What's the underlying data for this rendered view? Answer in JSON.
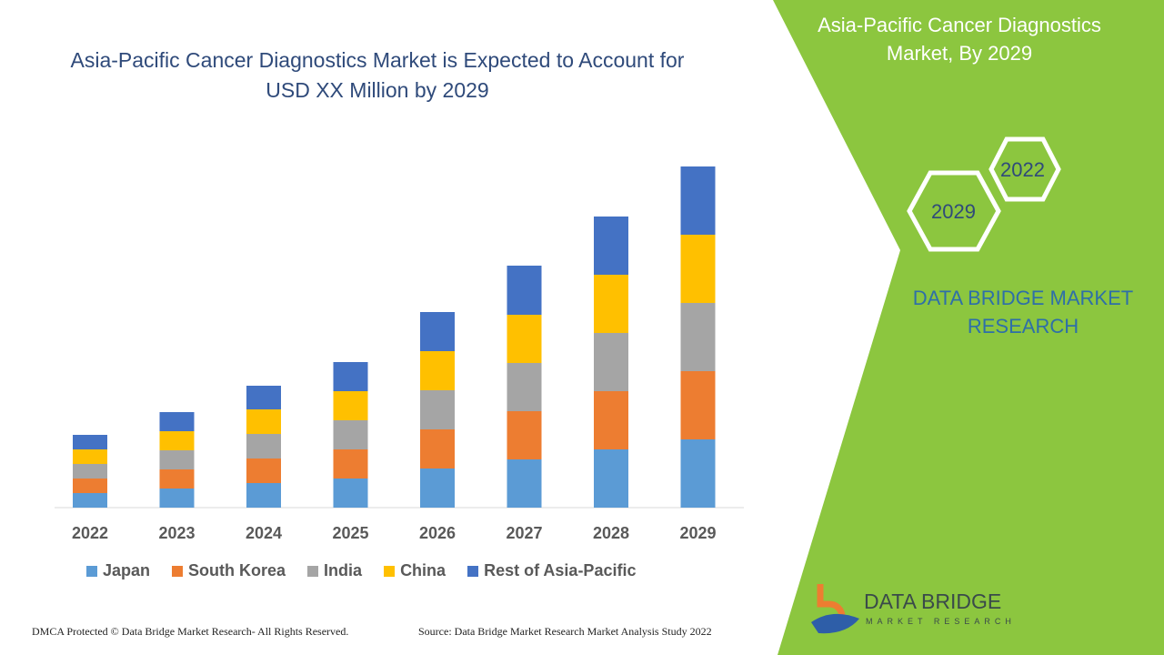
{
  "title": "Asia-Pacific Cancer Diagnostics Market is Expected to Account for USD XX Million by 2029",
  "side_panel": {
    "title": "Asia-Pacific Cancer Diagnostics Market, By 2029",
    "hex_labels": [
      "2022",
      "2029"
    ],
    "brand": "DATA BRIDGE MARKET RESEARCH",
    "green": "#8cc63f"
  },
  "footer": {
    "left": "DMCA Protected © Data Bridge Market Research- All Rights Reserved.",
    "right": "Source: Data Bridge Market Research Market Analysis Study 2022"
  },
  "logo": {
    "name": "DATA BRIDGE",
    "sub": "MARKET RESEARCH"
  },
  "chart_data": {
    "type": "bar",
    "stacked": true,
    "title": "",
    "xlabel": "",
    "ylabel": "",
    "legend": "bottom",
    "grid": false,
    "categories": [
      "2022",
      "2023",
      "2024",
      "2025",
      "2026",
      "2027",
      "2028",
      "2029"
    ],
    "series": [
      {
        "name": "Japan",
        "color": "#5b9bd5",
        "values": [
          16,
          21,
          27,
          32,
          43,
          53,
          64,
          75
        ]
      },
      {
        "name": "South Korea",
        "color": "#ed7d31",
        "values": [
          16,
          21,
          27,
          32,
          43,
          53,
          64,
          75
        ]
      },
      {
        "name": "India",
        "color": "#a5a5a5",
        "values": [
          16,
          21,
          27,
          32,
          43,
          53,
          64,
          75
        ]
      },
      {
        "name": "China",
        "color": "#ffc000",
        "values": [
          16,
          21,
          27,
          32,
          43,
          53,
          64,
          75
        ]
      },
      {
        "name": "Rest of Asia-Pacific",
        "color": "#4472c4",
        "values": [
          16,
          21,
          26,
          32,
          43,
          54,
          64,
          75
        ]
      }
    ]
  }
}
